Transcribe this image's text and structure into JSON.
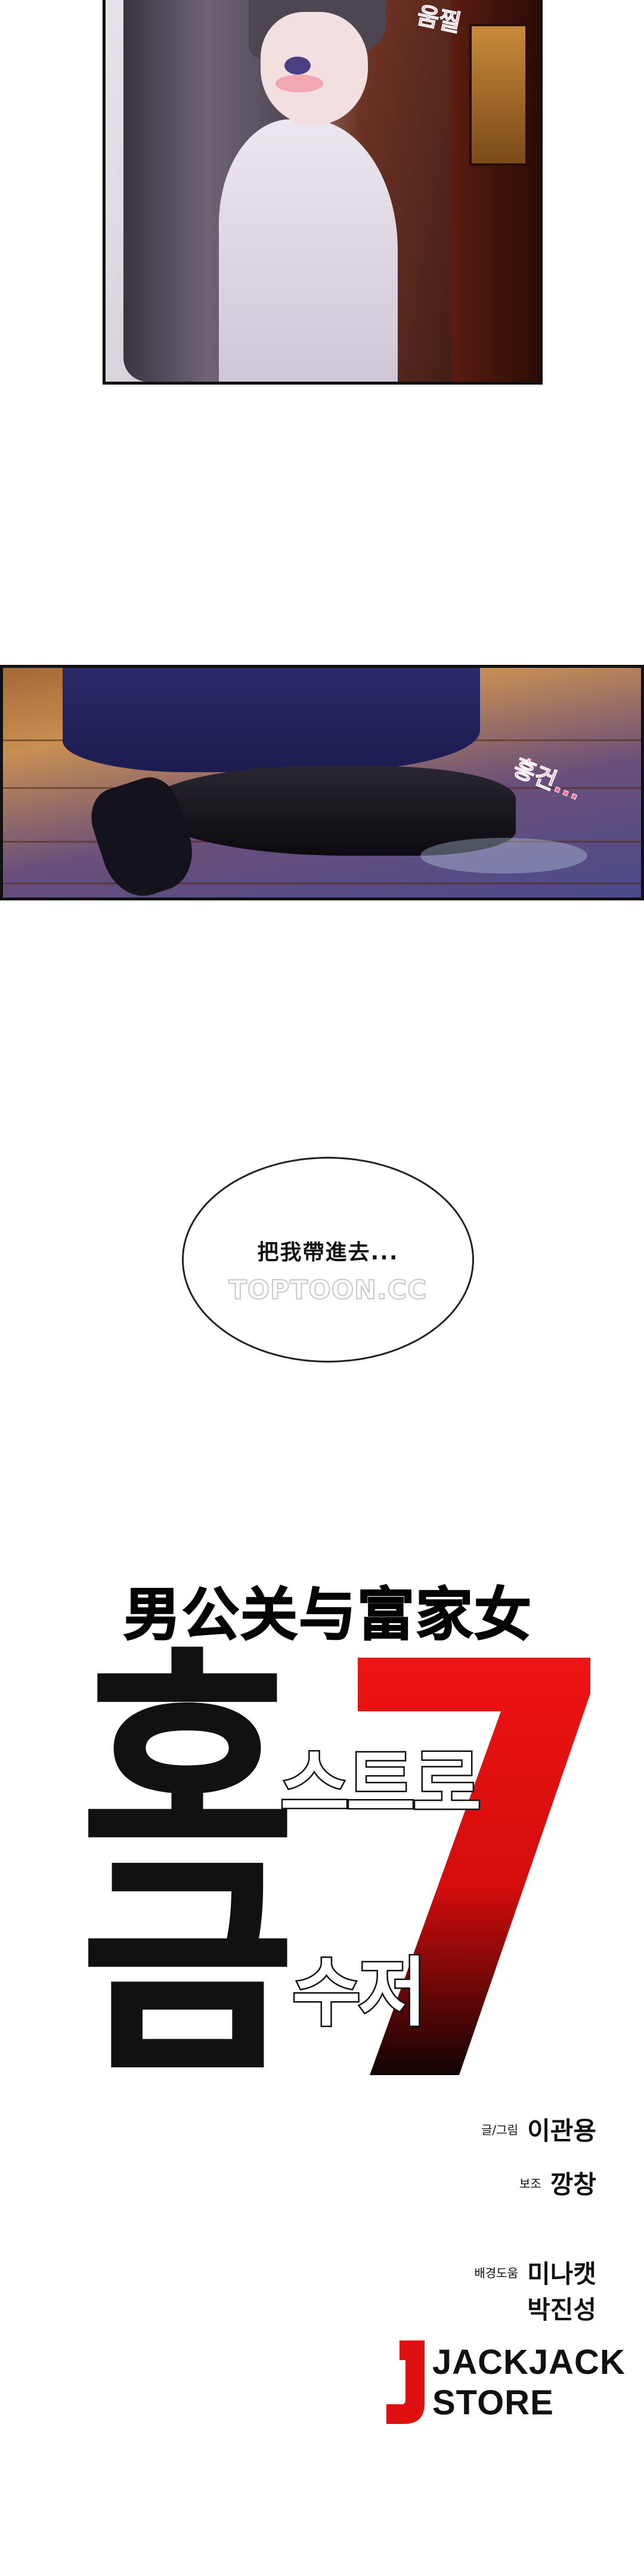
{
  "panels": {
    "top": {
      "sfx": "움찔"
    },
    "middle": {
      "sfx": "흥건..."
    }
  },
  "bubble": {
    "text": "把我帶進去...",
    "watermark": "TOPTOON.CC"
  },
  "title": {
    "chinese": "男公关与富家女",
    "korean_big_1": "호",
    "korean_sub_1": "스트로",
    "korean_big_2": "금",
    "korean_sub_2": "수저",
    "number": "7"
  },
  "credits": [
    {
      "label": "글/그림",
      "name": "이관용"
    },
    {
      "label": "보조",
      "name": "깡창"
    },
    {
      "label": "배경도움",
      "name": "미나캣"
    },
    {
      "label": "",
      "name": "박진성"
    }
  ],
  "logo": {
    "line1": "JACKJACK",
    "line2": "STORE"
  },
  "colors": {
    "accent_red": "#e01010",
    "sfx_pink": "#f26a9a"
  }
}
